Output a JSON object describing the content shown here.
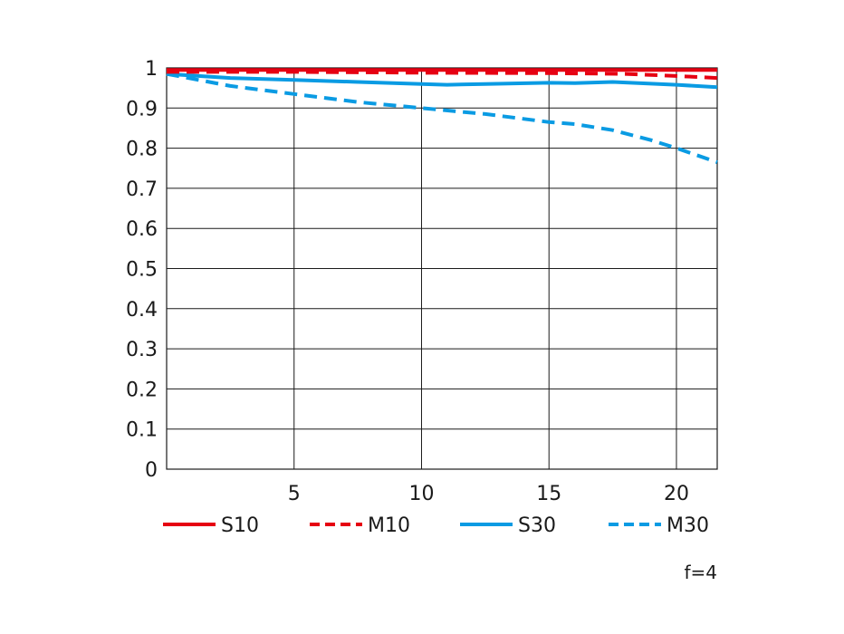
{
  "chart_data": {
    "type": "line",
    "title": "",
    "xlabel": "",
    "ylabel": "",
    "xlim": [
      0,
      21.6
    ],
    "ylim": [
      0,
      1
    ],
    "xticks": [
      5,
      10,
      15,
      20
    ],
    "yticks": [
      0,
      0.1,
      0.2,
      0.3,
      0.4,
      0.5,
      0.6,
      0.7,
      0.8,
      0.9,
      1
    ],
    "xtick_labels": [
      "5",
      "10",
      "15",
      "20"
    ],
    "ytick_labels": [
      "0",
      "0.1",
      "0.2",
      "0.3",
      "0.4",
      "0.5",
      "0.6",
      "0.7",
      "0.8",
      "0.9",
      "1"
    ],
    "grid": true,
    "legend_position": "bottom",
    "series": [
      {
        "name": "S10",
        "color": "#e60012",
        "dash": "solid",
        "x": [
          0,
          5,
          10,
          15,
          20,
          21.6
        ],
        "y": [
          0.995,
          0.995,
          0.995,
          0.995,
          0.995,
          0.995
        ]
      },
      {
        "name": "M10",
        "color": "#e60012",
        "dash": "dashed",
        "x": [
          0,
          5,
          10,
          15,
          18,
          20,
          21.6
        ],
        "y": [
          0.99,
          0.99,
          0.988,
          0.987,
          0.985,
          0.98,
          0.975
        ]
      },
      {
        "name": "S30",
        "color": "#0a9be3",
        "dash": "solid",
        "x": [
          0,
          2.5,
          5,
          7.5,
          10,
          11,
          12.5,
          15,
          16,
          17.5,
          20,
          21.6
        ],
        "y": [
          0.985,
          0.975,
          0.97,
          0.965,
          0.96,
          0.958,
          0.96,
          0.963,
          0.962,
          0.965,
          0.958,
          0.952
        ]
      },
      {
        "name": "M30",
        "color": "#0a9be3",
        "dash": "dashed",
        "x": [
          0,
          2.5,
          5,
          7.5,
          10,
          12.5,
          15,
          16,
          17.5,
          19,
          20,
          21.6
        ],
        "y": [
          0.985,
          0.955,
          0.935,
          0.915,
          0.9,
          0.885,
          0.865,
          0.86,
          0.845,
          0.82,
          0.8,
          0.765
        ]
      }
    ],
    "annotation": "f=4"
  }
}
